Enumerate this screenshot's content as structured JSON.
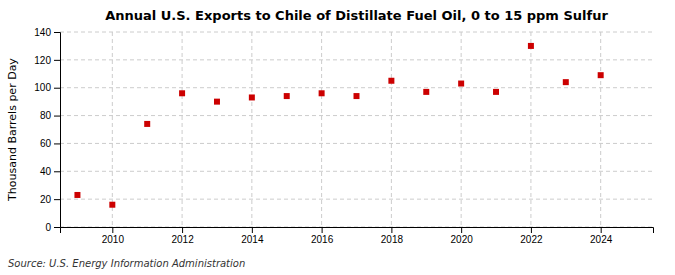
{
  "chart_data": {
    "type": "scatter",
    "title": "Annual U.S. Exports to Chile of Distillate Fuel Oil, 0 to 15 ppm Sulfur",
    "ylabel": "Thousand Barrels per Day",
    "source": "Source: U.S. Energy Information Administration",
    "x": [
      2009,
      2010,
      2011,
      2012,
      2013,
      2014,
      2015,
      2016,
      2017,
      2018,
      2019,
      2020,
      2021,
      2022,
      2023,
      2024
    ],
    "values": [
      23,
      16,
      74,
      96,
      90,
      93,
      94,
      96,
      94,
      105,
      97,
      103,
      97,
      130,
      104,
      109
    ],
    "color": "#cc0000",
    "marker": "square",
    "xlim": [
      2008.5,
      2025.5
    ],
    "xticks": [
      2010,
      2012,
      2014,
      2016,
      2018,
      2020,
      2022,
      2024
    ],
    "ylim": [
      0,
      140
    ],
    "yticks": [
      0,
      20,
      40,
      60,
      80,
      100,
      120,
      140
    ],
    "grid": true
  }
}
